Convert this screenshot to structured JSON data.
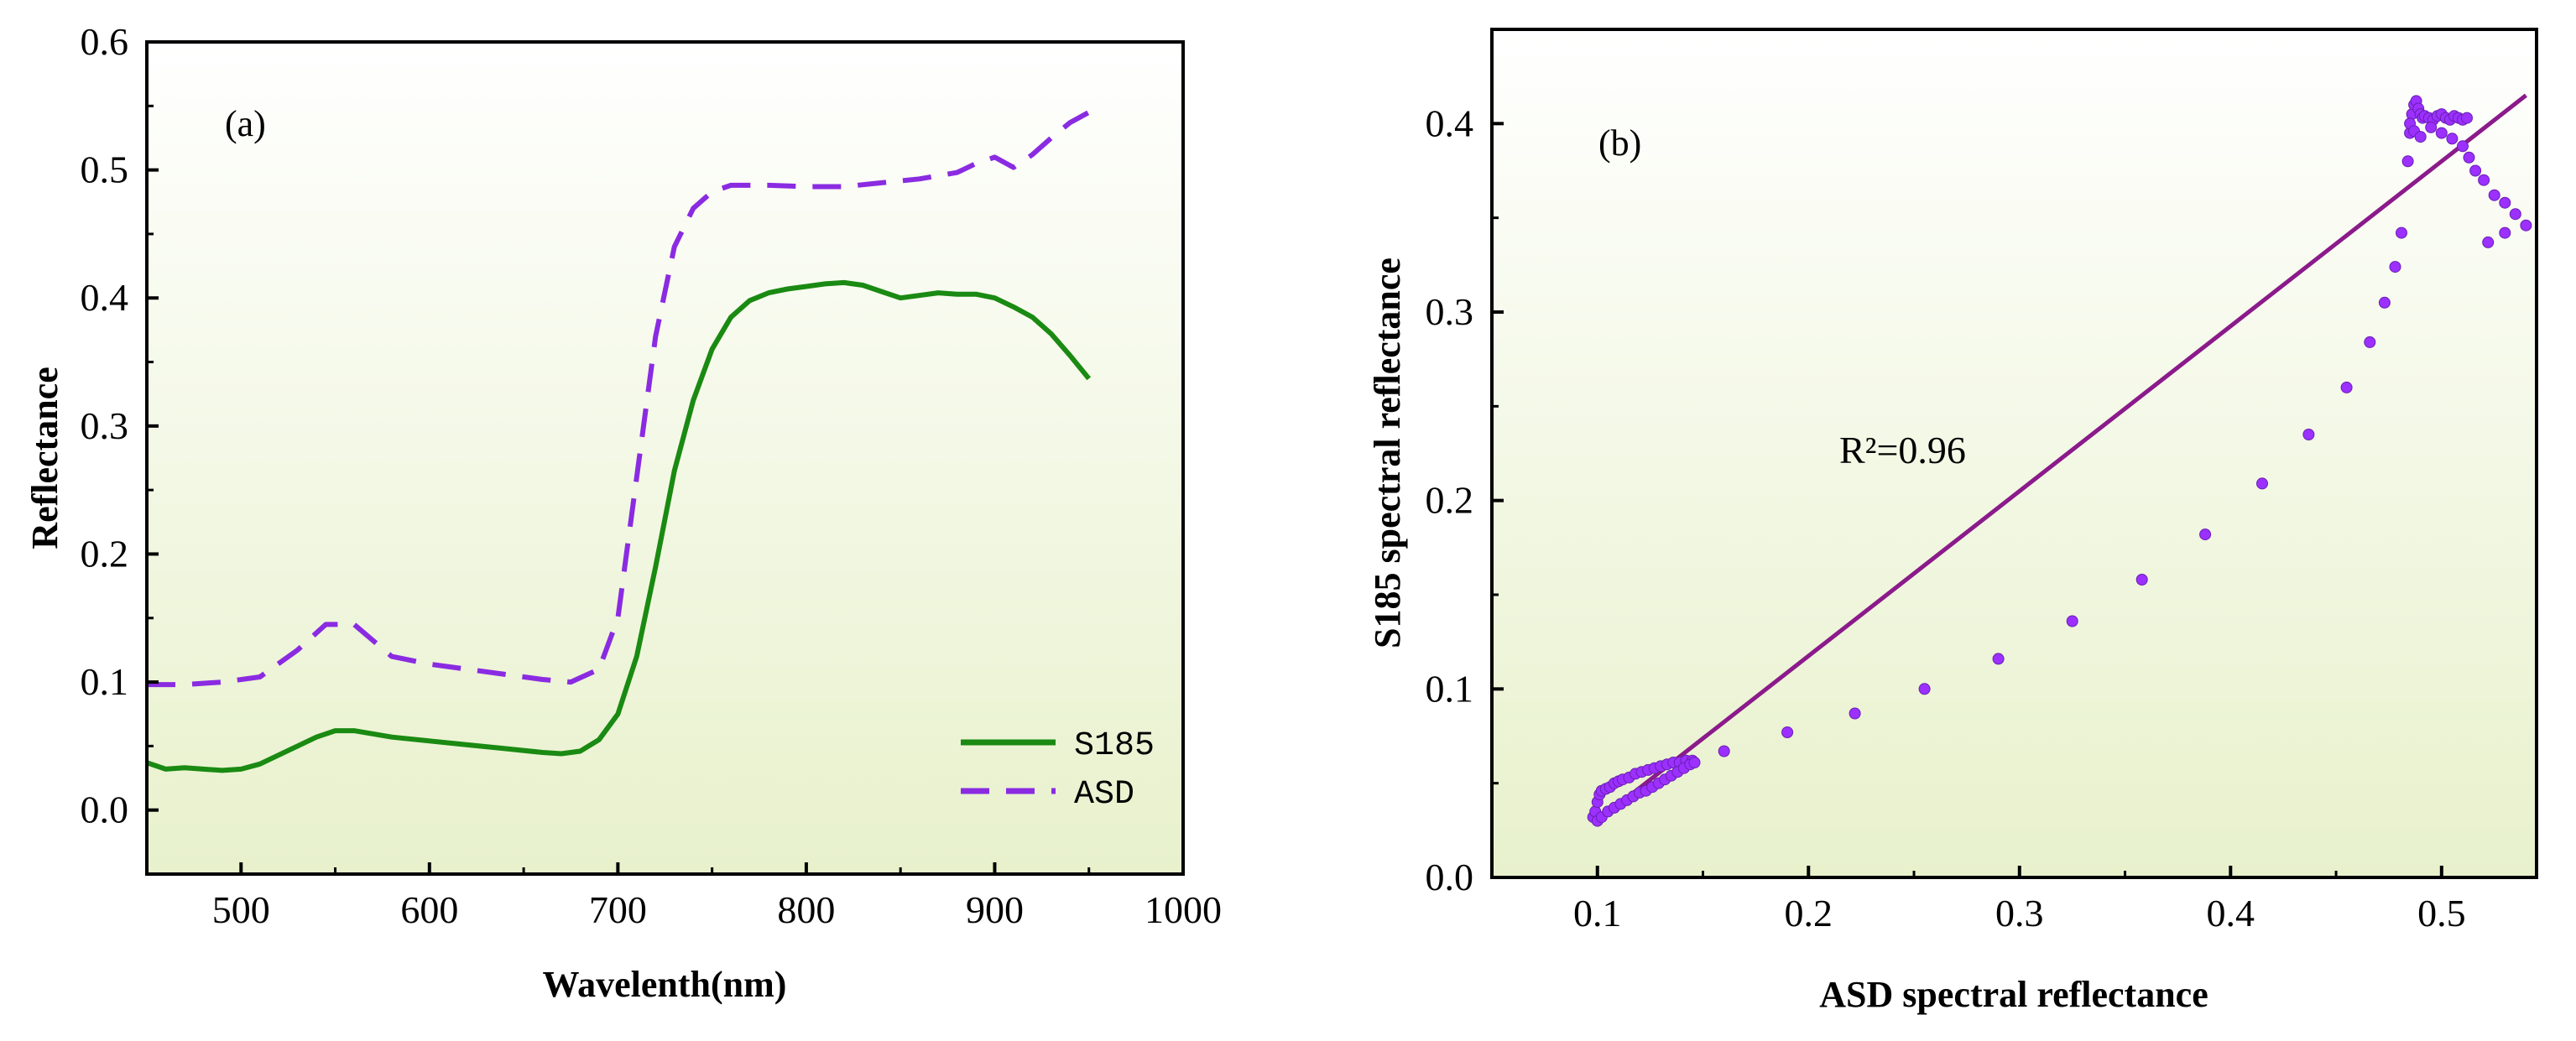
{
  "colors": {
    "bg_top": "#ffffff",
    "bg_bottom": "#e8f1cc",
    "s185": "#1a8a12",
    "asd": "#8a2be2",
    "fit_line": "#8b1a8b",
    "scatter": "#9b30ff"
  },
  "chart_data": [
    {
      "type": "line",
      "panel_label": "(a)",
      "xlabel": "Wavelenth(nm)",
      "ylabel": "Reflectance",
      "xlim": [
        450,
        1000
      ],
      "ylim": [
        -0.05,
        0.6
      ],
      "x_ticks": [
        500,
        600,
        700,
        800,
        900,
        1000
      ],
      "y_ticks": [
        0.0,
        0.1,
        0.2,
        0.3,
        0.4,
        0.5,
        0.6
      ],
      "x_tick_labels": [
        "500",
        "600",
        "700",
        "800",
        "900",
        "1000"
      ],
      "y_tick_labels": [
        "0.0",
        "0.1",
        "0.2",
        "0.3",
        "0.4",
        "0.5",
        "0.6"
      ],
      "legend_position": "bottom-right",
      "series": [
        {
          "name": "S185",
          "style": "solid",
          "x": [
            450,
            460,
            470,
            480,
            490,
            500,
            510,
            520,
            530,
            540,
            550,
            560,
            580,
            600,
            620,
            640,
            660,
            670,
            680,
            690,
            700,
            710,
            720,
            730,
            740,
            750,
            760,
            770,
            780,
            790,
            800,
            810,
            820,
            830,
            840,
            850,
            860,
            870,
            880,
            890,
            900,
            910,
            920,
            930,
            940,
            950
          ],
          "y": [
            0.037,
            0.032,
            0.033,
            0.032,
            0.031,
            0.032,
            0.036,
            0.043,
            0.05,
            0.057,
            0.062,
            0.062,
            0.057,
            0.054,
            0.051,
            0.048,
            0.045,
            0.044,
            0.046,
            0.055,
            0.075,
            0.12,
            0.19,
            0.265,
            0.32,
            0.36,
            0.385,
            0.398,
            0.404,
            0.407,
            0.409,
            0.411,
            0.412,
            0.41,
            0.405,
            0.4,
            0.402,
            0.404,
            0.403,
            0.403,
            0.4,
            0.393,
            0.385,
            0.372,
            0.355,
            0.337
          ]
        },
        {
          "name": "ASD",
          "style": "dashed",
          "x": [
            450,
            470,
            490,
            510,
            530,
            545,
            560,
            580,
            600,
            620,
            640,
            660,
            675,
            690,
            700,
            710,
            720,
            730,
            740,
            750,
            760,
            780,
            800,
            820,
            840,
            860,
            880,
            890,
            900,
            910,
            920,
            930,
            940,
            950
          ],
          "y": [
            0.098,
            0.098,
            0.1,
            0.104,
            0.125,
            0.145,
            0.145,
            0.12,
            0.114,
            0.11,
            0.106,
            0.102,
            0.1,
            0.11,
            0.15,
            0.26,
            0.37,
            0.44,
            0.47,
            0.483,
            0.488,
            0.488,
            0.487,
            0.487,
            0.49,
            0.493,
            0.498,
            0.505,
            0.51,
            0.502,
            0.512,
            0.525,
            0.537,
            0.545
          ]
        }
      ]
    },
    {
      "type": "scatter",
      "panel_label": "(b)",
      "xlabel": "ASD spectral reflectance",
      "ylabel": "S185 spectral reflectance",
      "xlim": [
        0.05,
        0.545
      ],
      "ylim": [
        0.0,
        0.45
      ],
      "x_ticks": [
        0.1,
        0.2,
        0.3,
        0.4,
        0.5
      ],
      "y_ticks": [
        0.0,
        0.1,
        0.2,
        0.3,
        0.4
      ],
      "x_tick_labels": [
        "0.1",
        "0.2",
        "0.3",
        "0.4",
        "0.5"
      ],
      "y_tick_labels": [
        "0.0",
        "0.1",
        "0.2",
        "0.3",
        "0.4"
      ],
      "annotation": "R²=0.96",
      "fit_line": {
        "x": [
          0.1,
          0.54
        ],
        "y": [
          0.03,
          0.415
        ]
      },
      "points": {
        "x": [
          0.098,
          0.099,
          0.1,
          0.101,
          0.102,
          0.104,
          0.106,
          0.108,
          0.11,
          0.112,
          0.115,
          0.118,
          0.121,
          0.124,
          0.127,
          0.13,
          0.133,
          0.136,
          0.139,
          0.142,
          0.145,
          0.1,
          0.102,
          0.105,
          0.108,
          0.111,
          0.114,
          0.117,
          0.12,
          0.123,
          0.126,
          0.129,
          0.132,
          0.135,
          0.138,
          0.141,
          0.144,
          0.146,
          0.16,
          0.19,
          0.222,
          0.255,
          0.29,
          0.325,
          0.358,
          0.388,
          0.415,
          0.437,
          0.455,
          0.466,
          0.473,
          0.478,
          0.481,
          0.484,
          0.485,
          0.486,
          0.487,
          0.488,
          0.489,
          0.49,
          0.491,
          0.492,
          0.494,
          0.496,
          0.498,
          0.5,
          0.502,
          0.504,
          0.506,
          0.508,
          0.51,
          0.512,
          0.485,
          0.487,
          0.49,
          0.495,
          0.5,
          0.505,
          0.51,
          0.513,
          0.516,
          0.52,
          0.525,
          0.53,
          0.535,
          0.54,
          0.522,
          0.53
        ],
        "y": [
          0.032,
          0.035,
          0.04,
          0.044,
          0.046,
          0.047,
          0.048,
          0.05,
          0.051,
          0.052,
          0.053,
          0.055,
          0.056,
          0.057,
          0.058,
          0.059,
          0.06,
          0.061,
          0.061,
          0.062,
          0.062,
          0.03,
          0.032,
          0.035,
          0.037,
          0.039,
          0.041,
          0.043,
          0.045,
          0.046,
          0.048,
          0.05,
          0.052,
          0.054,
          0.056,
          0.058,
          0.06,
          0.061,
          0.067,
          0.077,
          0.087,
          0.1,
          0.116,
          0.136,
          0.158,
          0.182,
          0.209,
          0.235,
          0.26,
          0.284,
          0.305,
          0.324,
          0.342,
          0.38,
          0.395,
          0.405,
          0.41,
          0.412,
          0.408,
          0.405,
          0.403,
          0.404,
          0.403,
          0.402,
          0.404,
          0.405,
          0.403,
          0.402,
          0.404,
          0.403,
          0.402,
          0.403,
          0.4,
          0.396,
          0.393,
          0.398,
          0.395,
          0.392,
          0.388,
          0.382,
          0.375,
          0.37,
          0.362,
          0.358,
          0.352,
          0.346,
          0.337,
          0.342
        ]
      }
    }
  ]
}
